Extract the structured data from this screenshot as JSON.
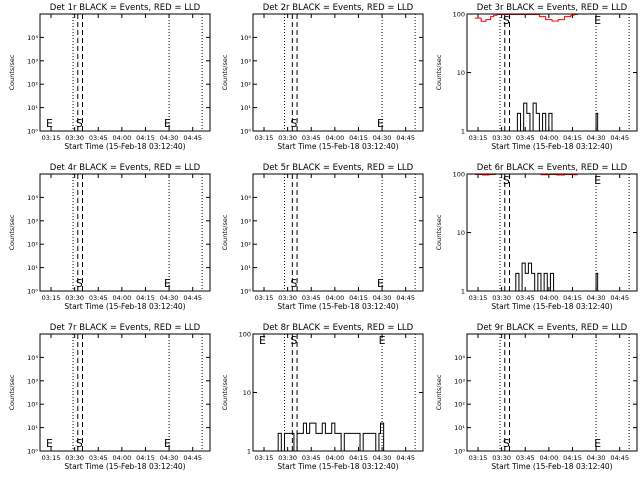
{
  "chart_data": [
    {
      "type": "line",
      "title": "Det 1r BLACK = Events, RED = LLD",
      "xlabel": "Start Time (15-Feb-18 03:12:40)",
      "ylabel": "Counts/sec",
      "xticks": [
        "03:15",
        "03:30",
        "03:45",
        "04:00",
        "04:15",
        "04:30",
        "04:45"
      ],
      "yscale": "log",
      "ylim": [
        1,
        100000
      ],
      "yticks": [
        "10⁰",
        "10¹",
        "10²",
        "10³",
        "10⁴"
      ],
      "markers": [
        {
          "text": "E",
          "x": "03:14"
        },
        {
          "text": "S",
          "x": "03:33"
        },
        {
          "text": "E",
          "x": "04:29"
        }
      ],
      "vlines_dotted": [
        "03:29",
        "04:30",
        "04:51"
      ],
      "vlines_dashed": [
        "03:32",
        "03:35"
      ],
      "series": []
    },
    {
      "type": "line",
      "title": "Det 2r BLACK = Events, RED = LLD",
      "xlabel": "Start Time (15-Feb-18 03:12:40)",
      "ylabel": "Counts/sec",
      "xticks": [
        "03:15",
        "03:30",
        "03:45",
        "04:00",
        "04:15",
        "04:30",
        "04:45"
      ],
      "yscale": "log",
      "ylim": [
        1,
        100000
      ],
      "yticks": [
        "10⁰",
        "10¹",
        "10²",
        "10³",
        "10⁴"
      ],
      "markers": [
        {
          "text": "S",
          "x": "03:34"
        },
        {
          "text": "E",
          "x": "04:29"
        }
      ],
      "vlines_dotted": [
        "03:28",
        "04:30",
        "04:51"
      ],
      "vlines_dashed": [
        "03:33",
        "03:36"
      ],
      "series": []
    },
    {
      "type": "line",
      "title": "Det 3r BLACK = Events, RED = LLD",
      "xlabel": "Start Time (15-Feb-18 03:12:40)",
      "ylabel": "Counts/sec",
      "xticks": [
        "03:15",
        "03:30",
        "03:45",
        "04:00",
        "04:15",
        "04:30",
        "04:45"
      ],
      "yscale": "log",
      "ylim": [
        1,
        100
      ],
      "yticks": [
        "1",
        "10",
        "100"
      ],
      "markers": [
        {
          "text": "S",
          "x": "03:33"
        },
        {
          "text": "E",
          "x": "04:31"
        }
      ],
      "vlines_dotted": [
        "03:29",
        "04:30",
        "04:51"
      ],
      "vlines_dashed": [
        "03:32",
        "03:35"
      ],
      "series": [
        {
          "color": "#ff0000",
          "x": [
            "03:13",
            "03:17",
            "03:20",
            "03:23",
            "03:25",
            "03:27",
            "03:50",
            "03:54",
            "03:58",
            "04:02",
            "04:06",
            "04:10",
            "04:14",
            "04:16",
            "04:18"
          ],
          "y": [
            85,
            75,
            80,
            90,
            95,
            98,
            98,
            90,
            80,
            76,
            80,
            90,
            95,
            98,
            100
          ]
        },
        {
          "color": "#000000",
          "x": [
            "03:38",
            "03:40",
            "03:42",
            "03:44",
            "03:46",
            "03:48",
            "03:50",
            "03:52",
            "03:54",
            "03:56",
            "03:58",
            "04:00",
            "04:02",
            "04:28",
            "04:30",
            "04:31"
          ],
          "y": [
            1,
            2,
            1,
            3,
            2,
            1,
            3,
            2,
            1,
            2,
            1,
            2,
            1,
            1,
            2,
            1
          ]
        }
      ]
    },
    {
      "type": "line",
      "title": "Det 4r BLACK = Events, RED = LLD",
      "xlabel": "Start Time (15-Feb-18 03:12:40)",
      "ylabel": "Counts/sec",
      "xticks": [
        "03:15",
        "03:30",
        "03:45",
        "04:00",
        "04:15",
        "04:30",
        "04:45"
      ],
      "yscale": "log",
      "ylim": [
        1,
        100000
      ],
      "yticks": [
        "10⁰",
        "10¹",
        "10²",
        "10³",
        "10⁴"
      ],
      "markers": [
        {
          "text": "S",
          "x": "03:33"
        },
        {
          "text": "E",
          "x": "04:29"
        }
      ],
      "vlines_dotted": [
        "03:29",
        "04:30",
        "04:51"
      ],
      "vlines_dashed": [
        "03:32",
        "03:35"
      ],
      "series": []
    },
    {
      "type": "line",
      "title": "Det 5r BLACK = Events, RED = LLD",
      "xlabel": "Start Time (15-Feb-18 03:12:40)",
      "ylabel": "Counts/sec",
      "xticks": [
        "03:15",
        "03:30",
        "03:45",
        "04:00",
        "04:15",
        "04:30",
        "04:45"
      ],
      "yscale": "log",
      "ylim": [
        1,
        100000
      ],
      "yticks": [
        "10⁰",
        "10¹",
        "10²",
        "10³",
        "10⁴"
      ],
      "markers": [
        {
          "text": "S",
          "x": "03:34"
        },
        {
          "text": "E",
          "x": "04:29"
        }
      ],
      "vlines_dotted": [
        "03:28",
        "04:30",
        "04:51"
      ],
      "vlines_dashed": [
        "03:33",
        "03:36"
      ],
      "series": []
    },
    {
      "type": "line",
      "title": "Det 6r BLACK = Events, RED = LLD",
      "xlabel": "Start Time (15-Feb-18 03:12:40)",
      "ylabel": "Counts/sec",
      "xticks": [
        "03:15",
        "03:30",
        "03:45",
        "04:00",
        "04:15",
        "04:30",
        "04:45"
      ],
      "yscale": "log",
      "ylim": [
        1,
        100
      ],
      "yticks": [
        "1",
        "10",
        "100"
      ],
      "markers": [
        {
          "text": "S",
          "x": "03:33"
        },
        {
          "text": "E",
          "x": "04:31"
        }
      ],
      "vlines_dotted": [
        "03:29",
        "04:30",
        "04:51"
      ],
      "vlines_dashed": [
        "03:32",
        "03:35"
      ],
      "series": [
        {
          "color": "#ff0000",
          "x": [
            "03:13",
            "03:18",
            "03:22",
            "03:26",
            "03:50",
            "03:55",
            "04:00",
            "04:05",
            "04:10",
            "04:15",
            "04:18"
          ],
          "y": [
            98,
            96,
            98,
            100,
            100,
            97,
            98,
            96,
            98,
            97,
            99
          ]
        },
        {
          "color": "#000000",
          "x": [
            "03:37",
            "03:39",
            "03:41",
            "03:43",
            "03:45",
            "03:47",
            "03:49",
            "03:51",
            "03:53",
            "03:55",
            "03:57",
            "03:59",
            "04:01",
            "04:03",
            "04:28",
            "04:30",
            "04:31"
          ],
          "y": [
            1,
            2,
            1,
            3,
            2,
            3,
            2,
            1,
            2,
            1,
            2,
            1,
            2,
            1,
            1,
            2,
            1
          ]
        }
      ]
    },
    {
      "type": "line",
      "title": "Det 7r BLACK = Events, RED = LLD",
      "xlabel": "Start Time (15-Feb-18 03:12:40)",
      "ylabel": "Counts/sec",
      "xticks": [
        "03:15",
        "03:30",
        "03:45",
        "04:00",
        "04:15",
        "04:30",
        "04:45"
      ],
      "yscale": "log",
      "ylim": [
        1,
        100000
      ],
      "yticks": [
        "10⁰",
        "10¹",
        "10²",
        "10³",
        "10⁴"
      ],
      "markers": [
        {
          "text": "E",
          "x": "03:14"
        },
        {
          "text": "S",
          "x": "03:33"
        },
        {
          "text": "E",
          "x": "04:29"
        }
      ],
      "vlines_dotted": [
        "03:29",
        "04:30",
        "04:51"
      ],
      "vlines_dashed": [
        "03:32",
        "03:35"
      ],
      "series": []
    },
    {
      "type": "line",
      "title": "Det 8r BLACK = Events, RED = LLD",
      "xlabel": "Start Time (15-Feb-18 03:12:40)",
      "ylabel": "Counts/sec",
      "xticks": [
        "03:15",
        "03:30",
        "03:45",
        "04:00",
        "04:15",
        "04:30",
        "04:45"
      ],
      "yscale": "log",
      "ylim": [
        1,
        100
      ],
      "yticks": [
        "1",
        "10",
        "100"
      ],
      "markers": [
        {
          "text": "E",
          "x": "03:14"
        },
        {
          "text": "S",
          "x": "03:34"
        },
        {
          "text": "E",
          "x": "04:30"
        }
      ],
      "vlines_dotted": [
        "03:28",
        "04:30",
        "04:51"
      ],
      "vlines_dashed": [
        "03:33",
        "03:36"
      ],
      "series": [
        {
          "color": "#000000",
          "x": [
            "03:22",
            "03:24",
            "03:26",
            "03:28",
            "03:30",
            "03:32",
            "03:34",
            "03:36",
            "03:38",
            "03:40",
            "03:42",
            "03:44",
            "03:46",
            "03:48",
            "03:50",
            "03:52",
            "03:54",
            "03:56",
            "03:58",
            "04:00",
            "04:02",
            "04:04",
            "04:06",
            "04:08",
            "04:10",
            "04:12",
            "04:14",
            "04:16",
            "04:18",
            "04:20",
            "04:22",
            "04:24",
            "04:26",
            "04:28",
            "04:29",
            "04:31"
          ],
          "y": [
            1,
            2,
            1,
            2,
            2,
            2,
            1,
            2,
            2,
            3,
            2,
            3,
            3,
            2,
            2,
            3,
            2,
            2,
            3,
            2,
            2,
            1,
            2,
            2,
            2,
            2,
            2,
            1,
            2,
            2,
            2,
            2,
            1,
            2,
            3,
            1
          ]
        }
      ]
    },
    {
      "type": "line",
      "title": "Det 9r BLACK = Events, RED = LLD",
      "xlabel": "Start Time (15-Feb-18 03:12:40)",
      "ylabel": "Counts/sec",
      "xticks": [
        "03:15",
        "03:30",
        "03:45",
        "04:00",
        "04:15",
        "04:30",
        "04:45"
      ],
      "yscale": "log",
      "ylim": [
        1,
        100000
      ],
      "yticks": [
        "10⁰",
        "10¹",
        "10²",
        "10³",
        "10⁴"
      ],
      "markers": [
        {
          "text": "S",
          "x": "03:33"
        },
        {
          "text": "E",
          "x": "04:31"
        }
      ],
      "vlines_dotted": [
        "03:29",
        "04:30",
        "04:51"
      ],
      "vlines_dashed": [
        "03:32",
        "03:35"
      ],
      "series": []
    }
  ]
}
